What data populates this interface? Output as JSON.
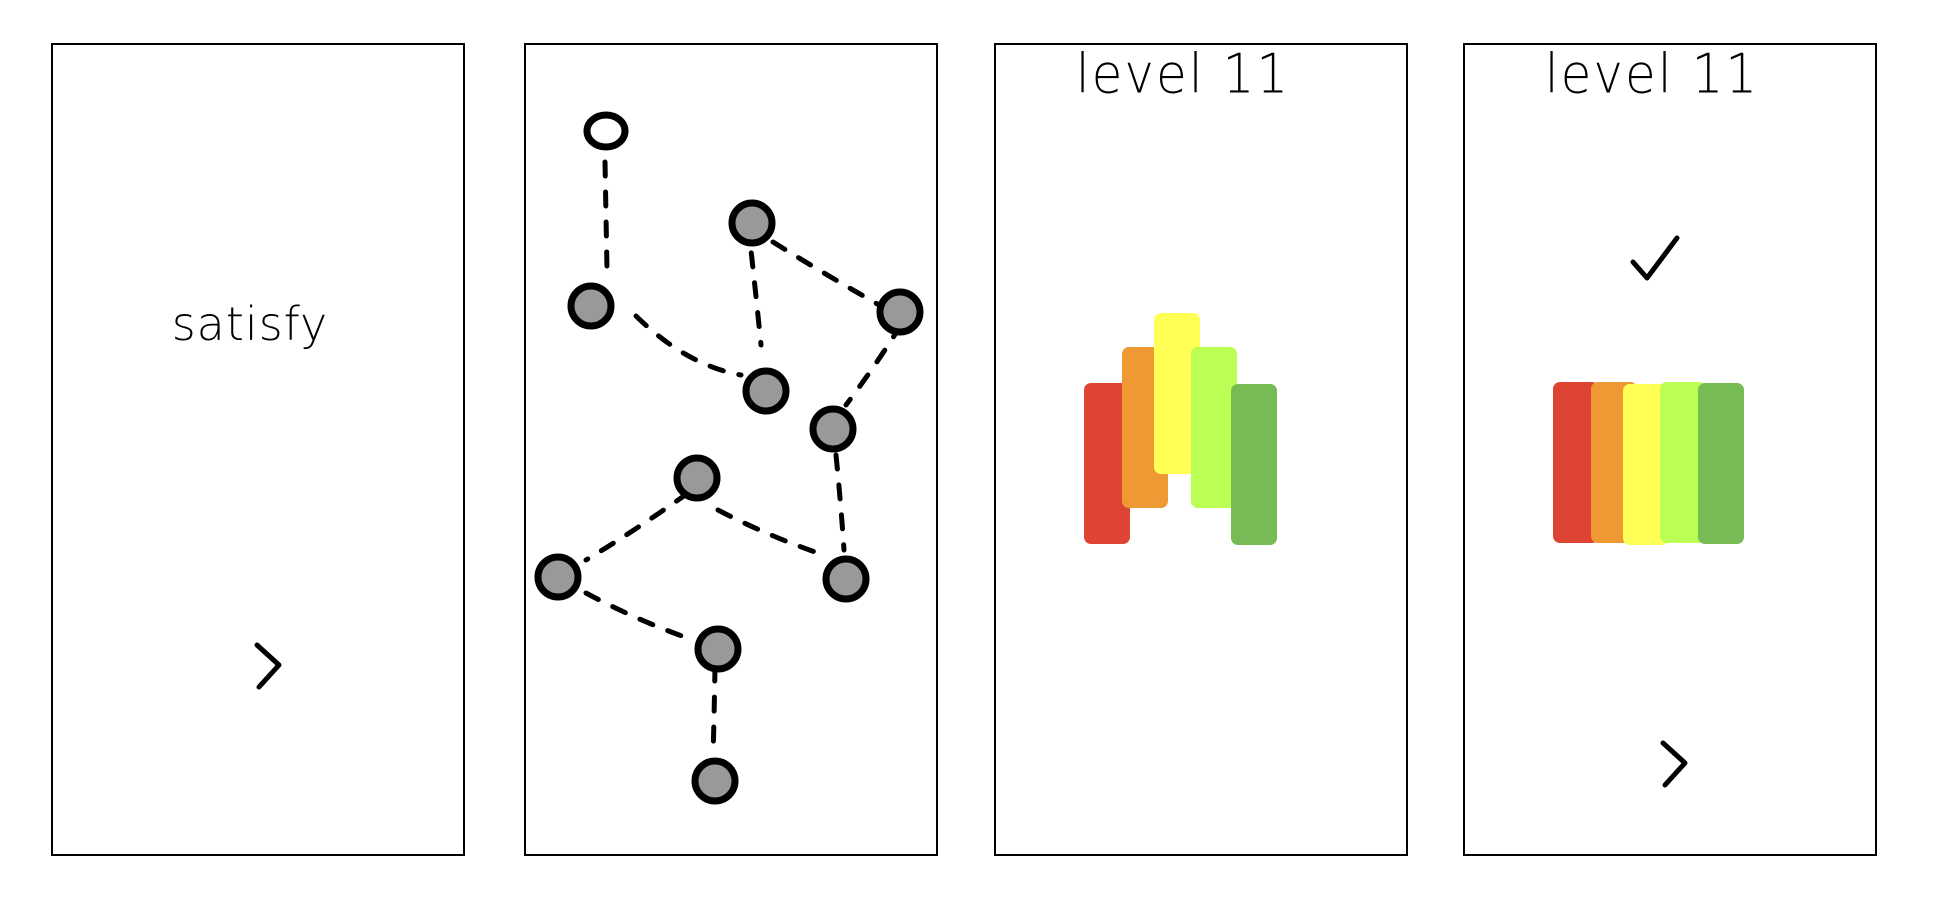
{
  "screens": [
    {
      "title_word": "satisfy",
      "next_icon": "chevron-right-icon"
    },
    {
      "puzzle": "graph-of-dashed-links",
      "node_icon": "gray-circle-node",
      "start_icon": "white-circle-node"
    },
    {
      "level_label": "level 11",
      "bars": [
        {
          "color": "#dd4433"
        },
        {
          "color": "#ee9933"
        },
        {
          "color": "#ffff55"
        },
        {
          "color": "#bbff55"
        },
        {
          "color": "#77bb55"
        }
      ]
    },
    {
      "level_label": "level 11",
      "solved_icon": "checkmark-icon",
      "next_icon": "chevron-right-icon",
      "bars": [
        {
          "color": "#dd4433"
        },
        {
          "color": "#ee9933"
        },
        {
          "color": "#ffff55"
        },
        {
          "color": "#bbff55"
        },
        {
          "color": "#77bb55"
        }
      ]
    }
  ],
  "colors": {
    "node_fill": "#999999",
    "stroke": "#000000"
  }
}
